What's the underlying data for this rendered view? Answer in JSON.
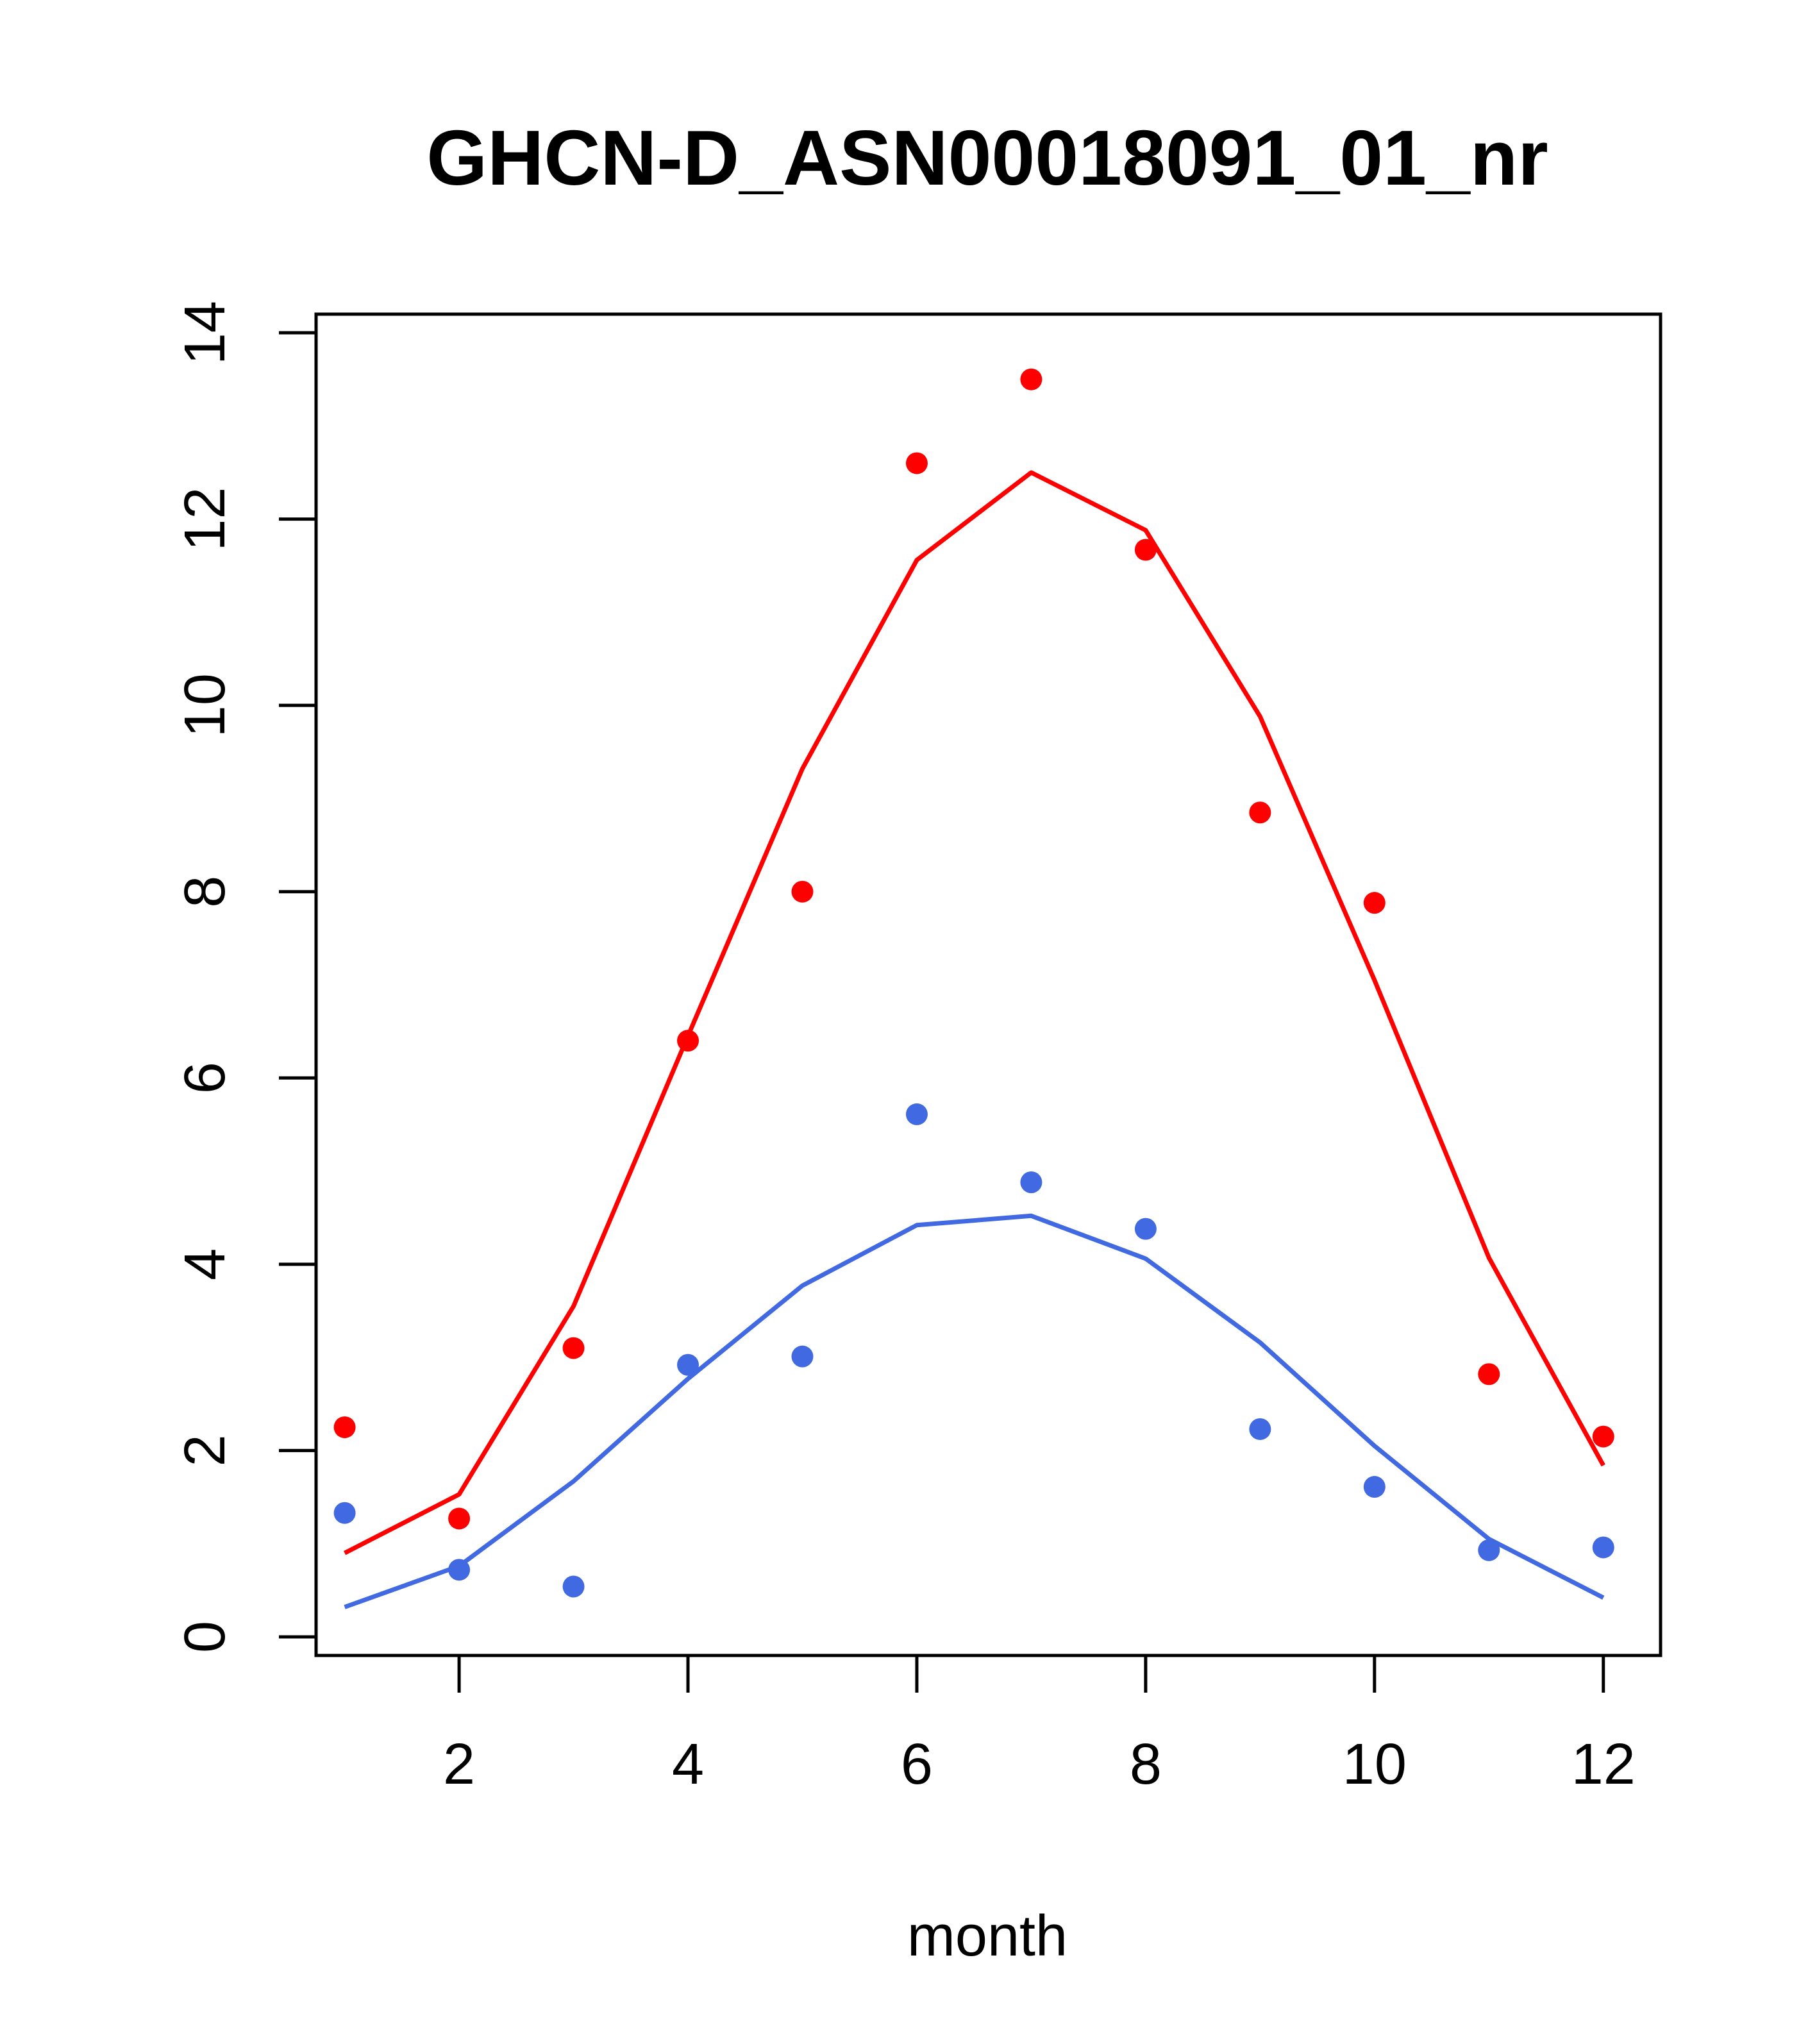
{
  "chart_data": {
    "type": "scatter",
    "title": "GHCN-D_ASN00018091_01_nr",
    "xlabel": "month",
    "ylabel": "",
    "xlim": [
      0.75,
      12.5
    ],
    "ylim": [
      -0.2,
      14.2
    ],
    "x_ticks": [
      2,
      4,
      6,
      8,
      10,
      12
    ],
    "y_ticks": [
      0,
      2,
      4,
      6,
      8,
      10,
      12,
      14
    ],
    "x_tick_labels": [
      "2",
      "4",
      "6",
      "8",
      "10",
      "12"
    ],
    "y_tick_labels": [
      "0",
      "2",
      "4",
      "6",
      "8",
      "10",
      "12",
      "14"
    ],
    "grid": false,
    "legend": "none",
    "x": [
      1,
      2,
      3,
      4,
      5,
      6,
      7,
      8,
      9,
      10,
      11,
      12
    ],
    "series": [
      {
        "color": "#ff0000",
        "points": [
          2.25,
          1.27,
          3.1,
          6.4,
          8.0,
          12.6,
          13.5,
          11.67,
          8.85,
          7.88,
          2.82,
          2.15
        ],
        "line": [
          0.9,
          1.53,
          3.55,
          6.45,
          9.32,
          11.56,
          12.5,
          11.88,
          9.88,
          7.05,
          4.07,
          1.84
        ]
      },
      {
        "color": "#4169e1",
        "points": [
          1.33,
          0.72,
          0.54,
          2.92,
          3.01,
          5.61,
          4.88,
          4.38,
          2.23,
          1.61,
          0.93,
          0.96
        ],
        "line": [
          0.32,
          0.76,
          1.67,
          2.77,
          3.77,
          4.42,
          4.52,
          4.06,
          3.16,
          2.05,
          1.05,
          0.42
        ]
      }
    ]
  }
}
